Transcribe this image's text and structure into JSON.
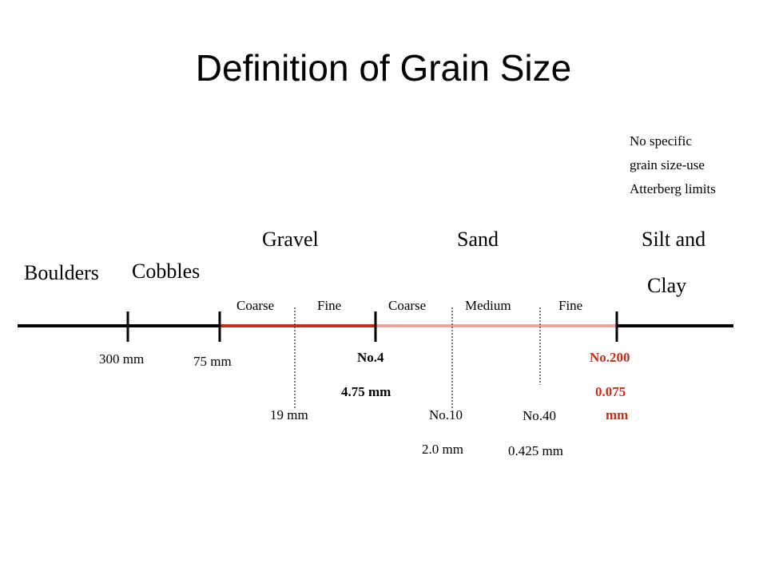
{
  "title": "Definition of Grain Size",
  "note": [
    "No specific",
    "grain size-use",
    "Atterberg limits"
  ],
  "categories": {
    "boulders": "Boulders",
    "cobbles": "Cobbles",
    "gravel": "Gravel",
    "sand": "Sand",
    "silt_clay_line1": "Silt and",
    "silt_clay_line2": "Clay"
  },
  "subdivisions": {
    "gravel_coarse": "Coarse",
    "gravel_fine": "Fine",
    "sand_coarse": "Coarse",
    "sand_medium": "Medium",
    "sand_fine": "Fine"
  },
  "boundaries": {
    "b300": "300 mm",
    "b75": "75 mm",
    "b19": "19 mm",
    "no4_sieve": "No.4",
    "no4_size": "4.75 mm",
    "no10_sieve": "No.10",
    "no10_size": "2.0 mm",
    "no40_sieve": "No.40",
    "no40_size": "0.425 mm",
    "no200_sieve": "No.200",
    "no200_size_line1": "0.075",
    "no200_size_line2": "mm"
  },
  "colors": {
    "axis": "#000000",
    "highlight": "#c0301e"
  }
}
